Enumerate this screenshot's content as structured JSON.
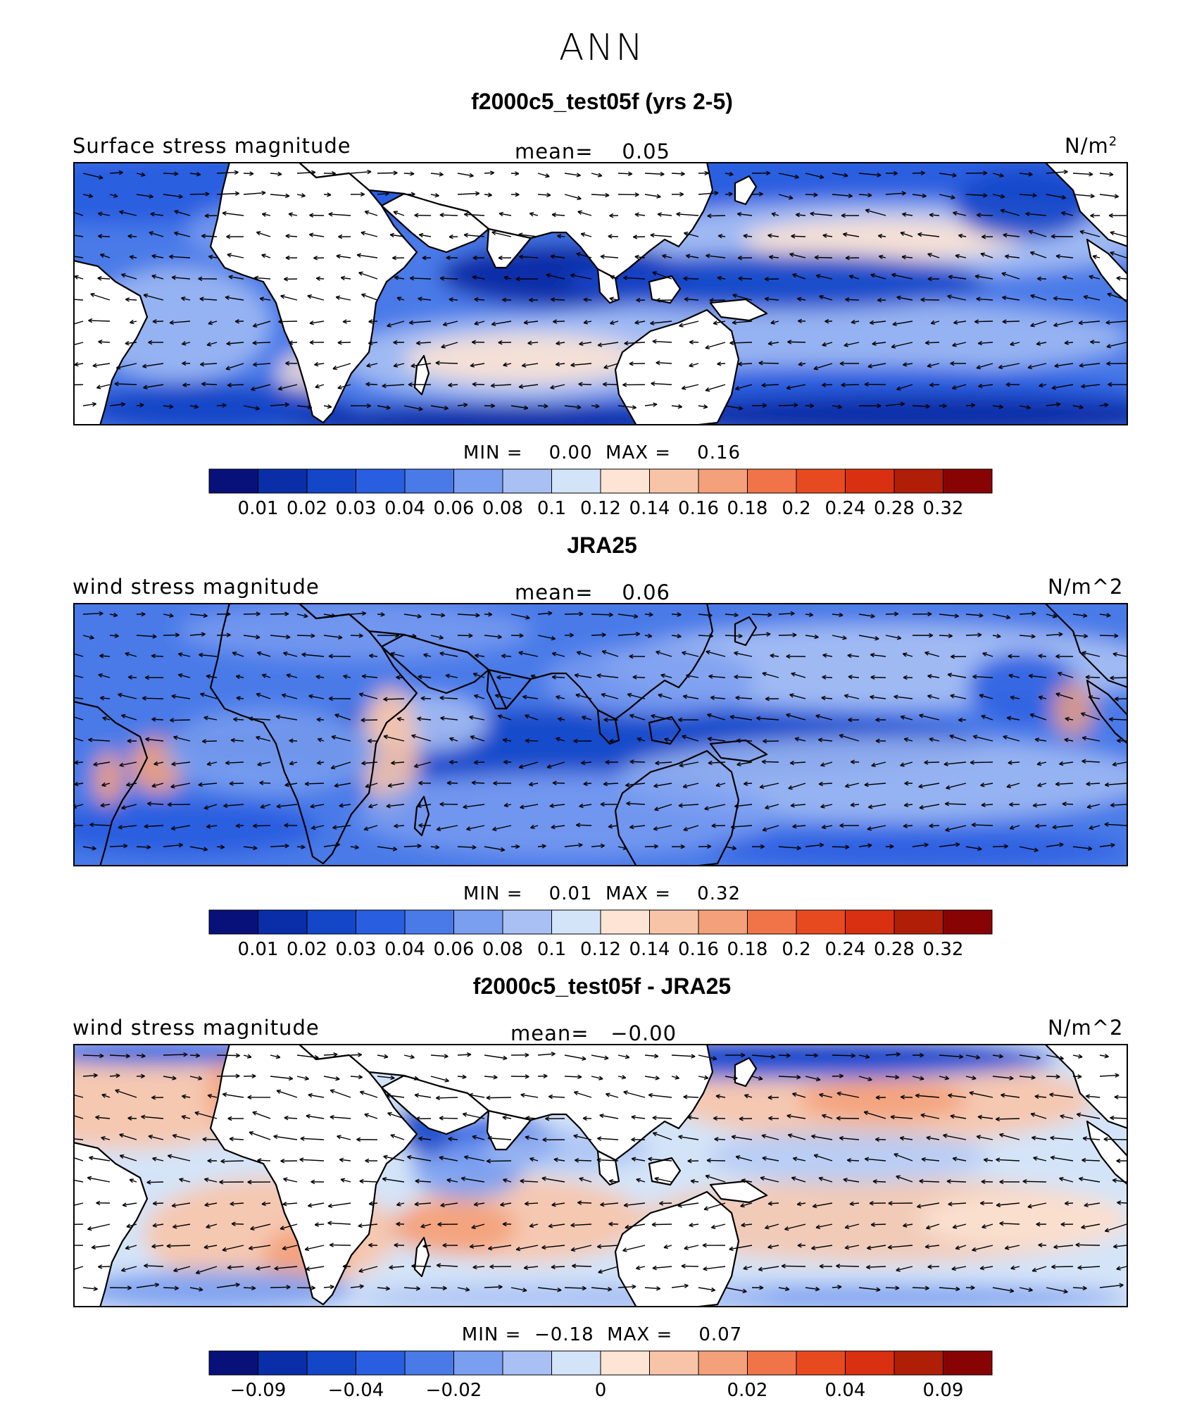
{
  "figure": {
    "title": "ANN"
  },
  "chart_data": [
    {
      "type": "heatmap",
      "title": "f2000c5_test05f (yrs 2-5)",
      "variable": "Surface stress magnitude",
      "units": "N/m",
      "units_sup": "2",
      "mean_label": "mean=",
      "mean": "0.05",
      "min_label": "MIN =",
      "min": "0.00",
      "max_label": "MAX =",
      "max": "0.16",
      "colorbar_ticks": [
        "0.01",
        "0.02",
        "0.03",
        "0.04",
        "0.06",
        "0.08",
        "0.1",
        "0.12",
        "0.14",
        "0.16",
        "0.18",
        "0.2",
        "0.24",
        "0.28",
        "0.32"
      ],
      "colorbar_colors": [
        "#08107a",
        "#0a2ea8",
        "#1446c8",
        "#2a5ee0",
        "#4a7ae8",
        "#7a9ef0",
        "#a8c0f4",
        "#d4e4f8",
        "#fde4d4",
        "#f8c4a8",
        "#f4a07a",
        "#f07448",
        "#e84a20",
        "#d83010",
        "#b01e08",
        "#880404"
      ],
      "regions": [
        "Atlantic",
        "Africa",
        "Indian Ocean",
        "Asia",
        "Australia",
        "Pacific",
        "Americas"
      ]
    },
    {
      "type": "heatmap",
      "title": "JRA25",
      "variable": "wind stress magnitude",
      "units": "N/m^2",
      "mean_label": "mean=",
      "mean": "0.06",
      "min_label": "MIN =",
      "min": "0.01",
      "max_label": "MAX =",
      "max": "0.32",
      "colorbar_ticks": [
        "0.01",
        "0.02",
        "0.03",
        "0.04",
        "0.06",
        "0.08",
        "0.1",
        "0.12",
        "0.14",
        "0.16",
        "0.18",
        "0.2",
        "0.24",
        "0.28",
        "0.32"
      ],
      "colorbar_colors": [
        "#08107a",
        "#0a2ea8",
        "#1446c8",
        "#2a5ee0",
        "#4a7ae8",
        "#7a9ef0",
        "#a8c0f4",
        "#d4e4f8",
        "#fde4d4",
        "#f8c4a8",
        "#f4a07a",
        "#f07448",
        "#e84a20",
        "#d83010",
        "#b01e08",
        "#880404"
      ]
    },
    {
      "type": "heatmap",
      "title": "f2000c5_test05f - JRA25",
      "variable": "wind stress magnitude",
      "units": "N/m^2",
      "mean_label": "mean=",
      "mean": "−0.00",
      "min_label": "MIN =",
      "min": "−0.18",
      "max_label": "MAX =",
      "max": "0.07",
      "colorbar_ticks": [
        "−0.09",
        "−0.04",
        "−0.02",
        "0",
        "0.02",
        "0.04",
        "0.09"
      ],
      "colorbar_colors": [
        "#08107a",
        "#0a2ea8",
        "#1446c8",
        "#2a5ee0",
        "#4a7ae8",
        "#7a9ef0",
        "#a8c0f4",
        "#d4e4f8",
        "#fde4d4",
        "#f8c4a8",
        "#f4a07a",
        "#f07448",
        "#e84a20",
        "#d83010",
        "#b01e08",
        "#880404"
      ]
    }
  ]
}
